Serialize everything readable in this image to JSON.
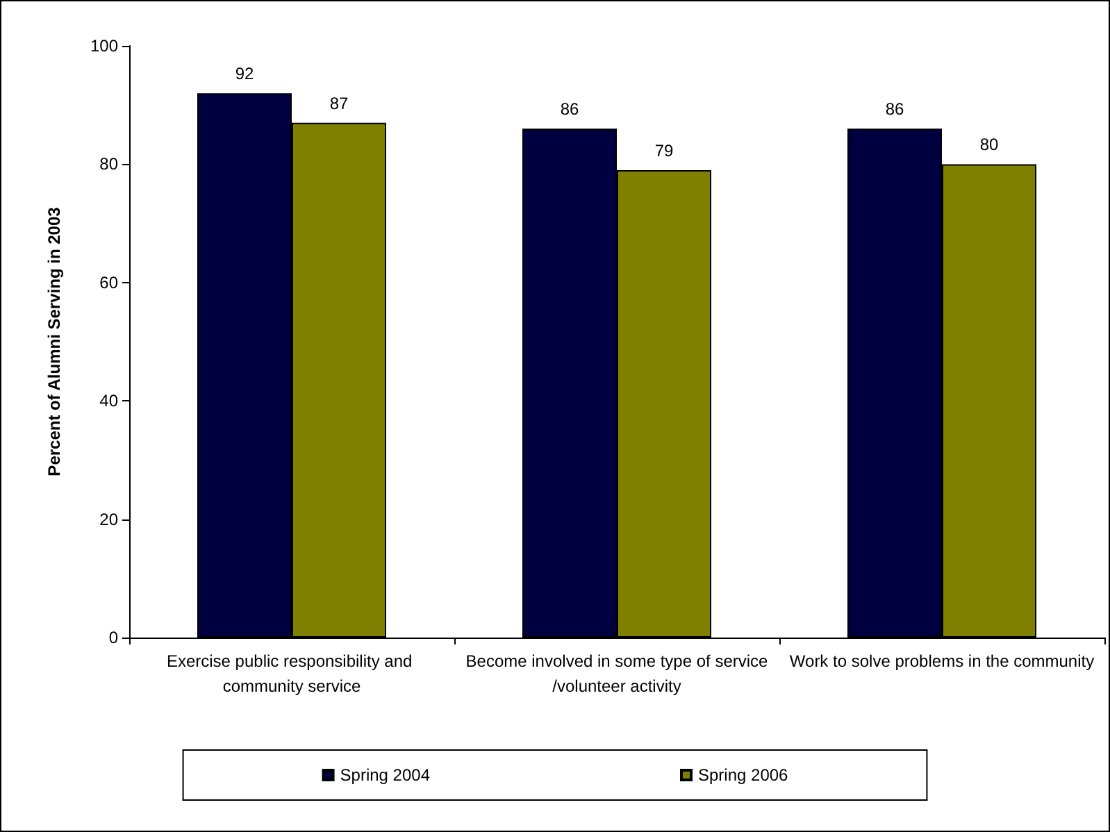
{
  "chart_data": {
    "type": "bar",
    "ylabel": "Percent of Alumni Serving in 2003",
    "categories": [
      "Exercise public responsibility and community service",
      "Become involved in some type of service/volunteer activity",
      "Work to solve problems in the community"
    ],
    "series": [
      {
        "name": "Spring 2004",
        "color": "#000040",
        "values": [
          92,
          86,
          86
        ]
      },
      {
        "name": "Spring 2006",
        "color": "#808000",
        "values": [
          87,
          79,
          80
        ]
      }
    ],
    "ylim": [
      0,
      100
    ],
    "yticks": [
      0,
      20,
      40,
      60,
      80,
      100
    ],
    "grid": false,
    "legend": "bottom",
    "data_labels": true
  }
}
